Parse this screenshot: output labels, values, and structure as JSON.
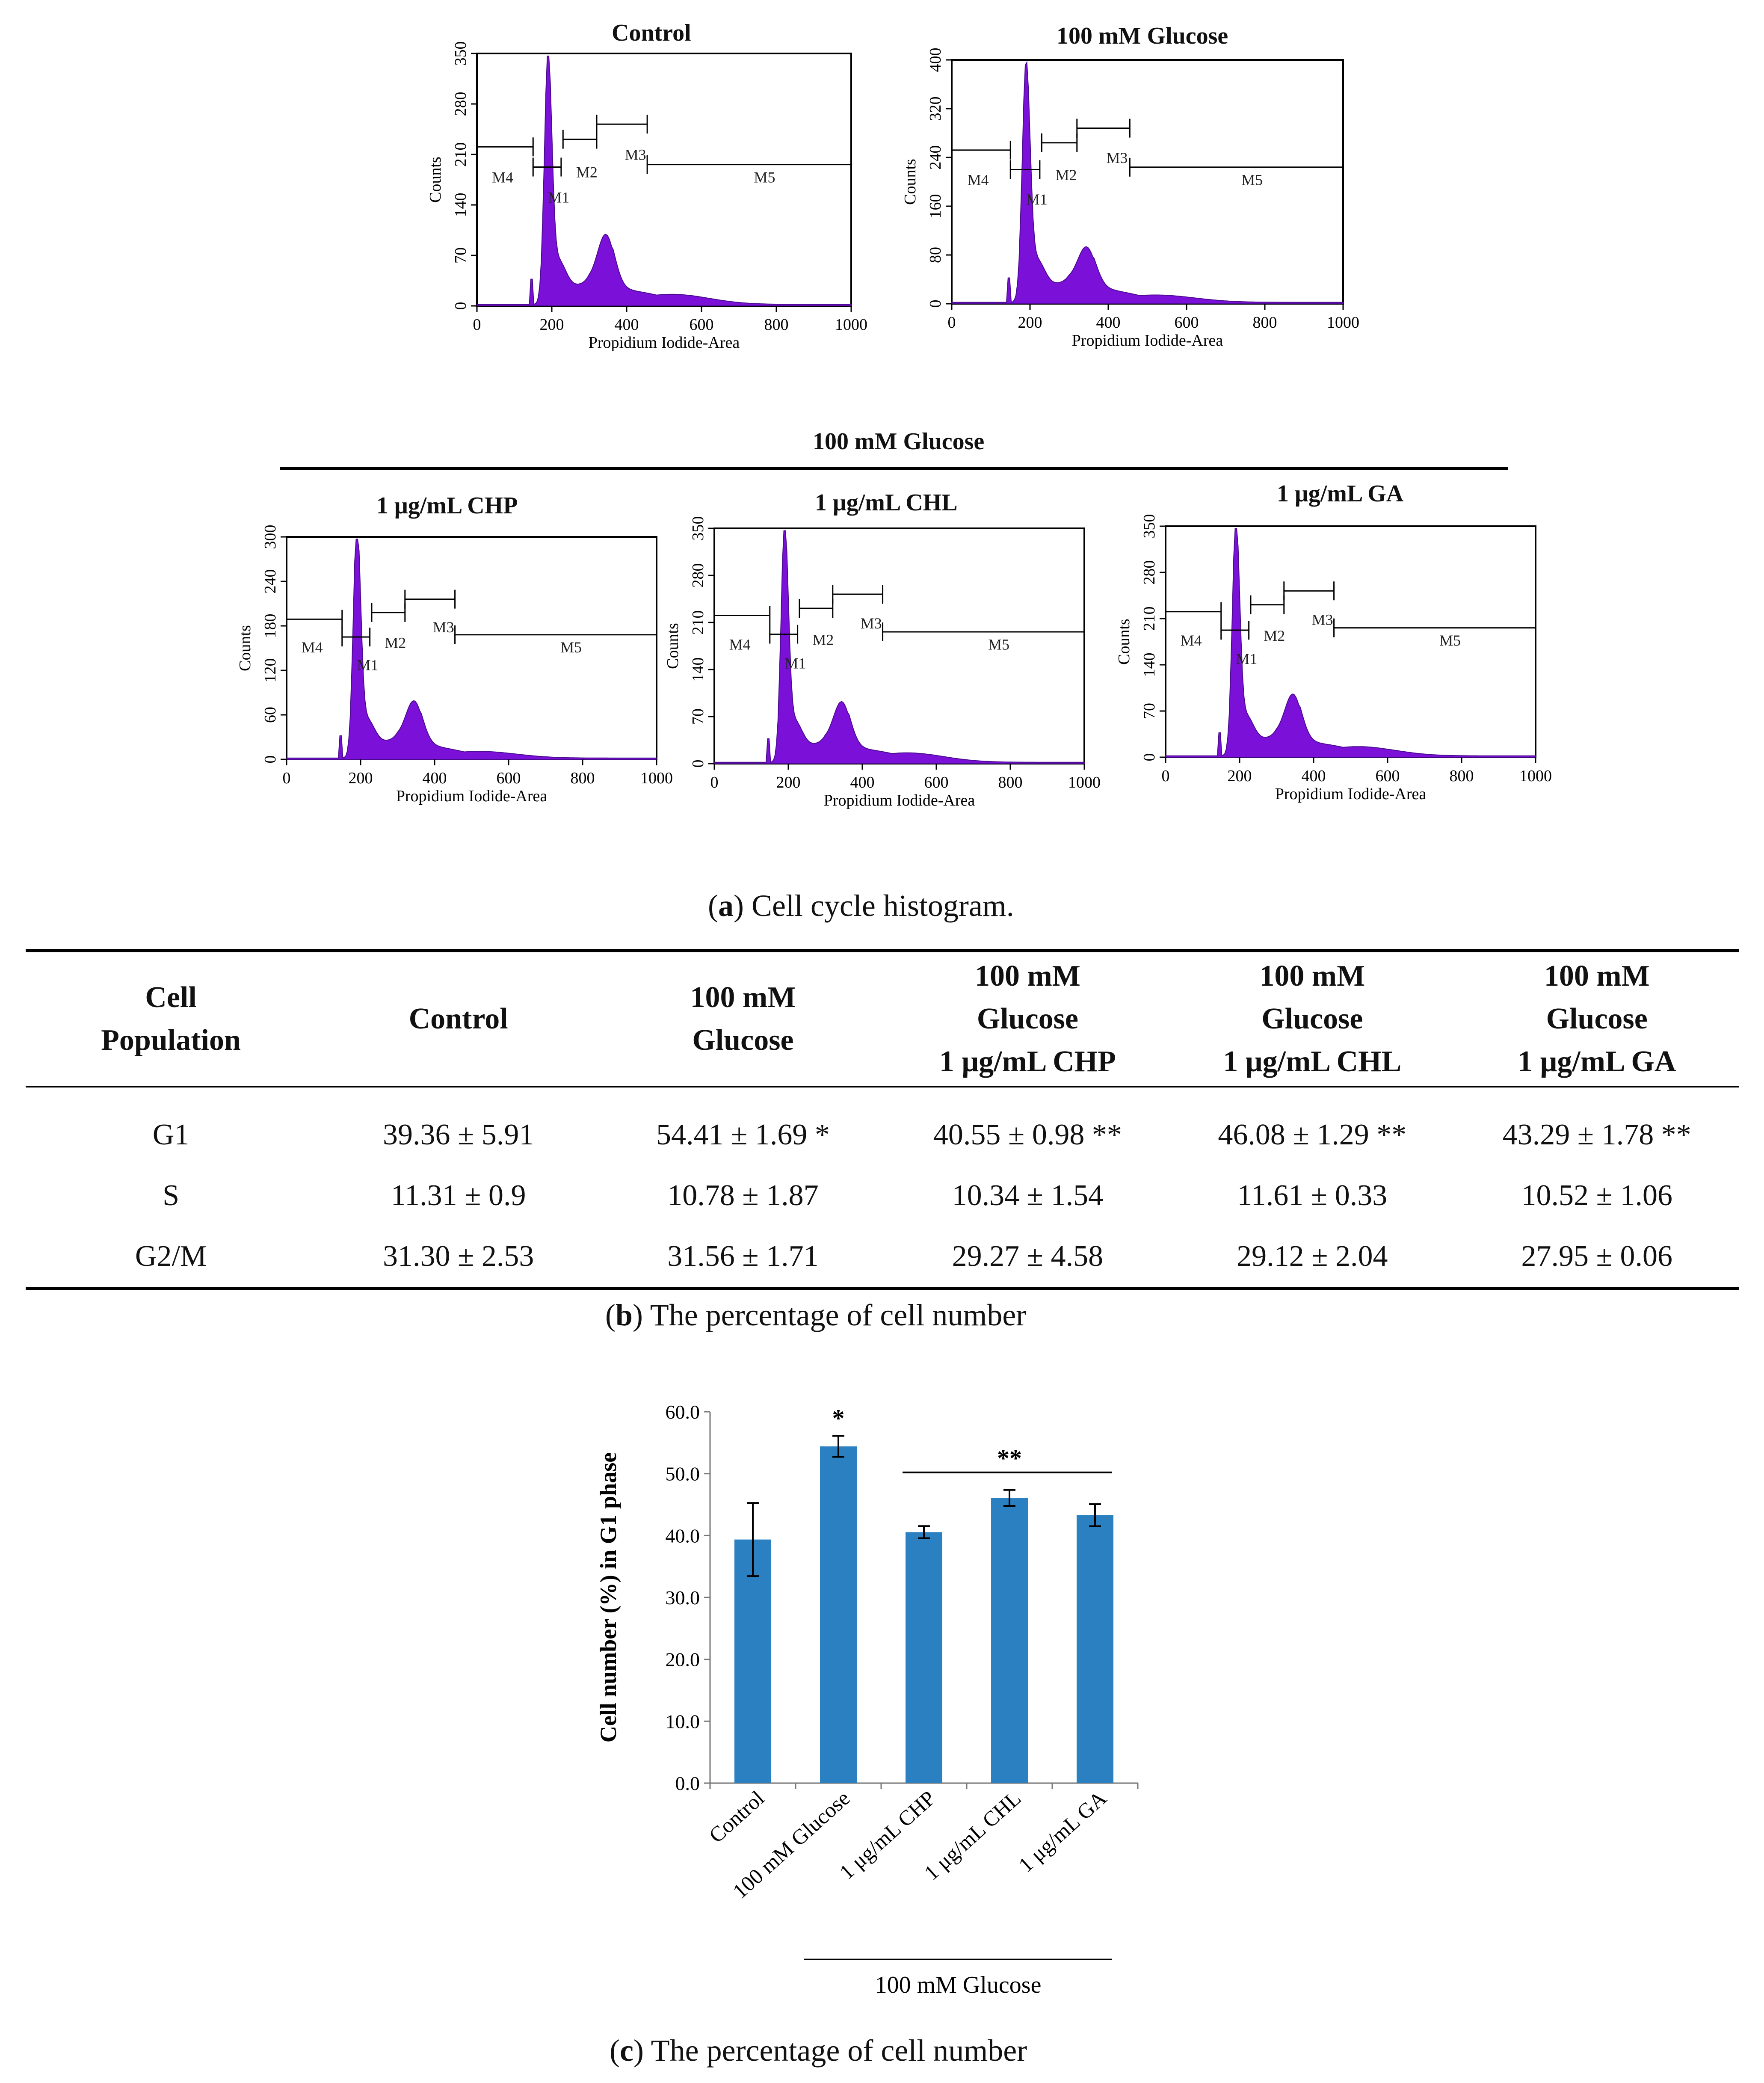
{
  "figure": {
    "histograms": {
      "group_header": "100 mM Glucose",
      "x_label": "Propidium Iodide-Area",
      "y_label": "Counts",
      "x_ticks": [
        "0",
        "200",
        "400",
        "600",
        "800",
        "1000"
      ],
      "markers": [
        "M1",
        "M2",
        "M3",
        "M4",
        "M5"
      ],
      "panels": [
        {
          "title": "Control",
          "y_ticks": [
            "0",
            "70",
            "140",
            "210",
            "280",
            "350"
          ],
          "ymax": 350
        },
        {
          "title": "100 mM Glucose",
          "y_ticks": [
            "0",
            "80",
            "160",
            "240",
            "320",
            "400"
          ],
          "ymax": 400
        },
        {
          "title": "1 μg/mL CHP",
          "y_ticks": [
            "0",
            "60",
            "120",
            "180",
            "240",
            "300"
          ],
          "ymax": 300
        },
        {
          "title": "1 μg/mL CHL",
          "y_ticks": [
            "0",
            "70",
            "140",
            "210",
            "280",
            "350"
          ],
          "ymax": 350
        },
        {
          "title": "1 μg/mL GA",
          "y_ticks": [
            "0",
            "70",
            "140",
            "210",
            "280",
            "350"
          ],
          "ymax": 350
        }
      ]
    },
    "caption_a": {
      "letter": "a",
      "text": " Cell cycle histogram."
    },
    "table": {
      "headers": [
        [
          "Cell",
          "Population"
        ],
        [
          "Control"
        ],
        [
          "100 mM",
          "Glucose"
        ],
        [
          "100 mM",
          "Glucose",
          "1 μg/mL CHP"
        ],
        [
          "100 mM",
          "Glucose",
          "1 μg/mL CHL"
        ],
        [
          "100 mM",
          "Glucose",
          "1 μg/mL GA"
        ]
      ],
      "rows": [
        [
          "G1",
          "39.36 ± 5.91",
          "54.41 ± 1.69 *",
          "40.55 ± 0.98 **",
          "46.08 ± 1.29 **",
          "43.29 ± 1.78 **"
        ],
        [
          "S",
          "11.31 ± 0.9",
          "10.78 ± 1.87",
          "10.34 ± 1.54",
          "11.61 ± 0.33",
          "10.52 ± 1.06"
        ],
        [
          "G2/M",
          "31.30 ± 2.53",
          "31.56 ± 1.71",
          "29.27 ± 4.58",
          "29.12 ± 2.04",
          "27.95 ± 0.06"
        ]
      ]
    },
    "caption_b": {
      "letter": "b",
      "text": " The percentage of cell number"
    },
    "caption_c": {
      "letter": "c",
      "text": " The percentage of cell number"
    }
  },
  "chart_data": [
    {
      "type": "bar",
      "title": "",
      "categories": [
        "Control",
        "100 mM Glucose",
        "1 μg/mL CHP",
        "1 μg/mL CHL",
        "1 μg/mL GA"
      ],
      "values": [
        39.36,
        54.41,
        40.55,
        46.08,
        43.29
      ],
      "errors": [
        5.91,
        1.69,
        0.98,
        1.29,
        1.78
      ],
      "y_ticks": [
        "0.0",
        "10.0",
        "20.0",
        "30.0",
        "40.0",
        "50.0",
        "60.0"
      ],
      "ylim": [
        0,
        60
      ],
      "xlabel": "",
      "ylabel": "Cell number (%) in G1 phase",
      "group_label": "100 mM Glucose",
      "significance": {
        "single": "*",
        "group": "**"
      },
      "color": "#2a80c0",
      "grid": false
    }
  ]
}
